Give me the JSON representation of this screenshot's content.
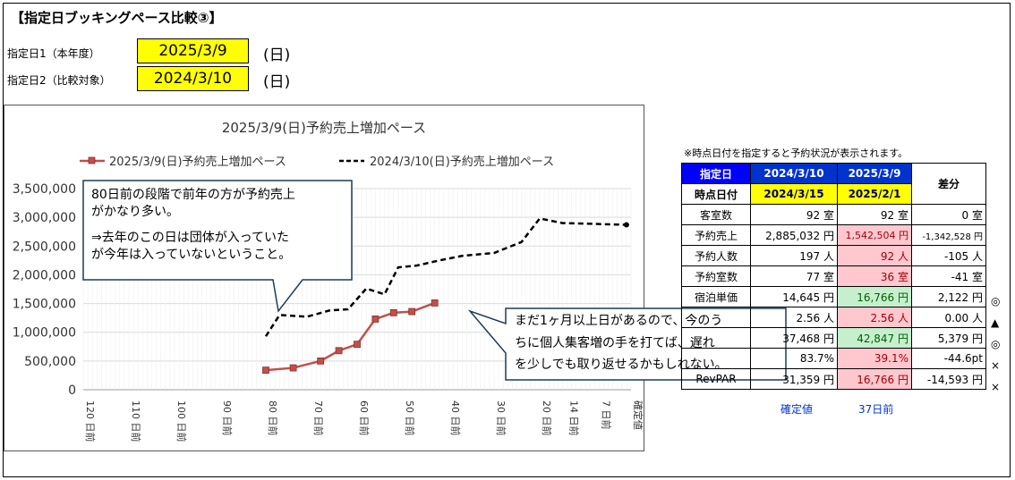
{
  "header": {
    "title": "【指定日ブッキングペース比較③】"
  },
  "dates": {
    "label1": "指定日1（本年度）",
    "label2": "指定日2（比較対象）",
    "date1": "2025/3/9",
    "date2": "2024/3/10",
    "dow1": "(日)",
    "dow2": "(日)"
  },
  "chart_data": {
    "type": "line",
    "title": "2025/3/9(日)予約売上増加ペース",
    "x_labels": [
      "120 日前",
      "110 日前",
      "100 日前",
      "90 日前",
      "80 日前",
      "70 日前",
      "60 日前",
      "50 日前",
      "40 日前",
      "30 日前",
      "20 日前",
      "14 日前",
      "7 日前",
      "確定値"
    ],
    "ylim": [
      0,
      3500000
    ],
    "y_ticks": [
      "0",
      "500,000",
      "1,000,000",
      "1,500,000",
      "2,000,000",
      "2,500,000",
      "3,000,000",
      "3,500,000"
    ],
    "grid": true,
    "legend_position": "top",
    "series": [
      {
        "name": "2025/3/9(日)予約売上増加ペース",
        "color": "#c0504d",
        "style": "solid",
        "points": [
          [
            80,
            340000
          ],
          [
            74,
            380000
          ],
          [
            68,
            500000
          ],
          [
            64,
            680000
          ],
          [
            60,
            790000
          ],
          [
            56,
            1230000
          ],
          [
            52,
            1340000
          ],
          [
            48,
            1360000
          ],
          [
            43,
            1510000
          ]
        ]
      },
      {
        "name": "2024/3/10(日)予約売上増加ペース",
        "color": "#000000",
        "style": "dashed",
        "points": [
          [
            80,
            930000
          ],
          [
            77,
            1300000
          ],
          [
            71,
            1270000
          ],
          [
            66,
            1380000
          ],
          [
            62,
            1400000
          ],
          [
            58,
            1760000
          ],
          [
            54,
            1660000
          ],
          [
            51,
            2130000
          ],
          [
            47,
            2160000
          ],
          [
            42,
            2250000
          ],
          [
            37,
            2330000
          ],
          [
            30,
            2380000
          ],
          [
            24,
            2570000
          ],
          [
            20,
            2980000
          ],
          [
            15,
            2900000
          ],
          [
            10,
            2890000
          ],
          [
            1,
            2870000
          ]
        ]
      }
    ]
  },
  "callouts": {
    "left_lines": [
      "80日前の段階で前年の方が予約売上",
      "がかなり多い。",
      "⇒去年のこの日は団体が入っていた",
      "が今年は入っていないということ。"
    ],
    "right_lines": [
      "まだ1ヶ月以上日があるので、今のう",
      "ちに個人集客増の手を打てば、遅れ",
      "を少しでも取り返せるかもしれない。"
    ]
  },
  "table": {
    "note": "※時点日付を指定すると予約状況が表示されます。",
    "head1": [
      "指定日",
      "2024/3/10",
      "2025/3/9"
    ],
    "head2": [
      "時点日付",
      "2024/3/15",
      "2025/2/1"
    ],
    "diff_label": "差分",
    "rows": [
      {
        "label": "客室数",
        "a": "92 室",
        "b": "92 室",
        "d": "0 室",
        "mark": ""
      },
      {
        "label": "予約売上",
        "a": "2,885,032 円",
        "b": "1,542,504 円",
        "d": "-1,342,528 円",
        "mark": ""
      },
      {
        "label": "予約人数",
        "a": "197 人",
        "b": "92 人",
        "d": "-105 人",
        "mark": ""
      },
      {
        "label": "予約室数",
        "a": "77 室",
        "b": "36 室",
        "d": "-41 室",
        "mark": ""
      },
      {
        "label": "宿泊単価",
        "a": "14,645 円",
        "b": "16,766 円",
        "d": "2,122 円",
        "mark": "◎"
      },
      {
        "label": "",
        "a": "2.56 人",
        "b": "2.56 人",
        "d": "0.00 人",
        "mark": "▲"
      },
      {
        "label": "",
        "a": "37,468 円",
        "b": "42,847 円",
        "d": "5,379 円",
        "mark": "◎"
      },
      {
        "label": "",
        "a": "83.7%",
        "b": "39.1%",
        "d": "-44.6pt",
        "mark": "×"
      },
      {
        "label": "RevPAR",
        "a": "31,359 円",
        "b": "16,766 円",
        "d": "-14,593 円",
        "mark": "×"
      }
    ],
    "footer": [
      "確定値",
      "37日前"
    ]
  }
}
